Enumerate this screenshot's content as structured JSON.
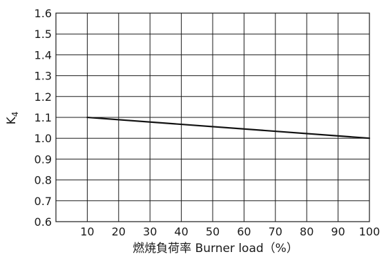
{
  "chart_data": {
    "type": "line",
    "title": "",
    "xlabel": "燃焼負荷率 Burner load（%）",
    "ylabel": "K",
    "ylabel_subscript": "4",
    "xlim": [
      0,
      100
    ],
    "ylim": [
      0.6,
      1.6
    ],
    "x_ticks": [
      10,
      20,
      30,
      40,
      50,
      60,
      70,
      80,
      90,
      100
    ],
    "y_ticks": [
      "0.6",
      "0.7",
      "0.8",
      "0.9",
      "1.0",
      "1.1",
      "1.2",
      "1.3",
      "1.4",
      "1.5",
      "1.6"
    ],
    "grid": true,
    "series": [
      {
        "x": [
          10,
          100
        ],
        "y": [
          1.1,
          1.0
        ]
      }
    ]
  }
}
